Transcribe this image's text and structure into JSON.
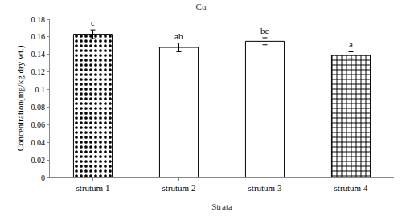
{
  "chart_data": {
    "type": "bar",
    "title": "Cu",
    "x_label": "Strata",
    "y_label": "Concentration(mg/kg dry wt.)",
    "categories": [
      "strutum 1",
      "strutum 2",
      "strutum 3",
      "strutum 4"
    ],
    "values": [
      0.163,
      0.148,
      0.155,
      0.139
    ],
    "errors": [
      0.005,
      0.005,
      0.004,
      0.004
    ],
    "annotations": [
      "c",
      "ab",
      "bc",
      "a"
    ],
    "color": "#000000",
    "ylim": [
      0,
      0.18
    ],
    "yticks": [
      0,
      0.02,
      0.04,
      0.06,
      0.08,
      0.1,
      0.12,
      0.14,
      0.16,
      0.18
    ],
    "grid": false
  }
}
